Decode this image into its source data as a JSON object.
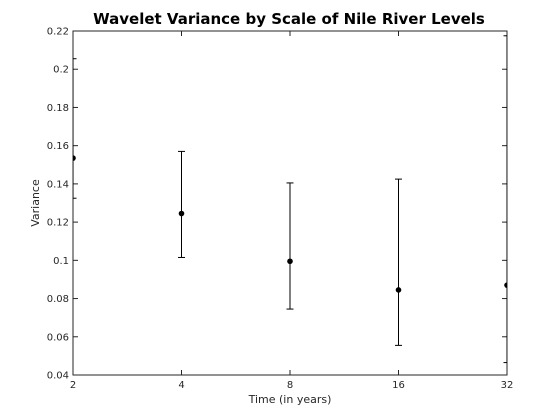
{
  "chart_data": {
    "type": "scatter",
    "title": "Wavelet Variance by Scale of Nile River Levels",
    "xlabel": "Time (in years)",
    "ylabel": "Variance",
    "x_scale": "log2",
    "x_ticks": [
      2,
      4,
      8,
      16,
      32
    ],
    "x_tick_labels": [
      "2",
      "4",
      "8",
      "16",
      "32"
    ],
    "xlim": [
      2,
      32
    ],
    "ylim": [
      0.04,
      0.22
    ],
    "y_ticks": [
      0.04,
      0.06,
      0.08,
      0.1,
      0.12,
      0.14,
      0.16,
      0.18,
      0.2,
      0.22
    ],
    "y_tick_labels": [
      "0.04",
      "0.06",
      "0.08",
      "0.1",
      "0.12",
      "0.14",
      "0.16",
      "0.18",
      "0.2",
      "0.22"
    ],
    "grid": false,
    "points": [
      {
        "x": 2,
        "y": 0.1535,
        "lower": 0.1325,
        "upper": 0.2055
      },
      {
        "x": 4,
        "y": 0.1245,
        "lower": 0.1015,
        "upper": 0.157
      },
      {
        "x": 8,
        "y": 0.0995,
        "lower": 0.0745,
        "upper": 0.1405
      },
      {
        "x": 16,
        "y": 0.0845,
        "lower": 0.0555,
        "upper": 0.1425
      },
      {
        "x": 32,
        "y": 0.087,
        "lower": 0.0465,
        "upper": 0.2175
      }
    ]
  }
}
